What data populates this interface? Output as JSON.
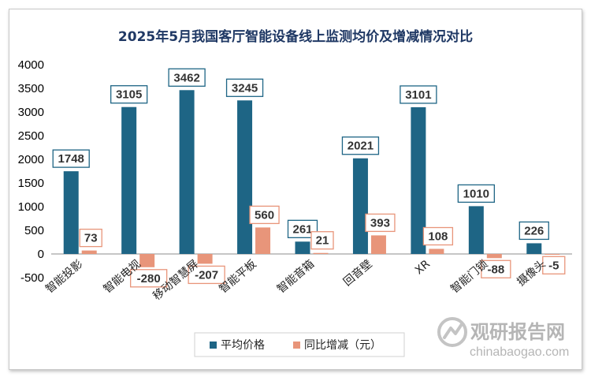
{
  "chart_data": {
    "type": "bar",
    "title": "2025年5月我国客厅智能设备线上监测均价及增减情况对比",
    "categories": [
      "智能投影",
      "智能电视",
      "移动智慧屏",
      "智能平板",
      "智能音箱",
      "回音壁",
      "XR",
      "智能门锁",
      "摄像头"
    ],
    "series": [
      {
        "name": "平均价格",
        "color": "#1e6585",
        "values": [
          1748,
          3105,
          3462,
          3245,
          261,
          2021,
          3101,
          1010,
          226
        ]
      },
      {
        "name": "同比增减（元）",
        "color": "#e8957a",
        "values": [
          73,
          -280,
          -207,
          560,
          21,
          393,
          108,
          -88,
          -5
        ]
      }
    ],
    "ylim": [
      -500,
      4000
    ],
    "yticks": [
      -500,
      0,
      500,
      1000,
      1500,
      2000,
      2500,
      3000,
      3500,
      4000
    ],
    "legend_position": "bottom",
    "grid": false
  },
  "watermark": {
    "logo_text": "观研报告网",
    "url_text": "chinabaogao.com"
  }
}
